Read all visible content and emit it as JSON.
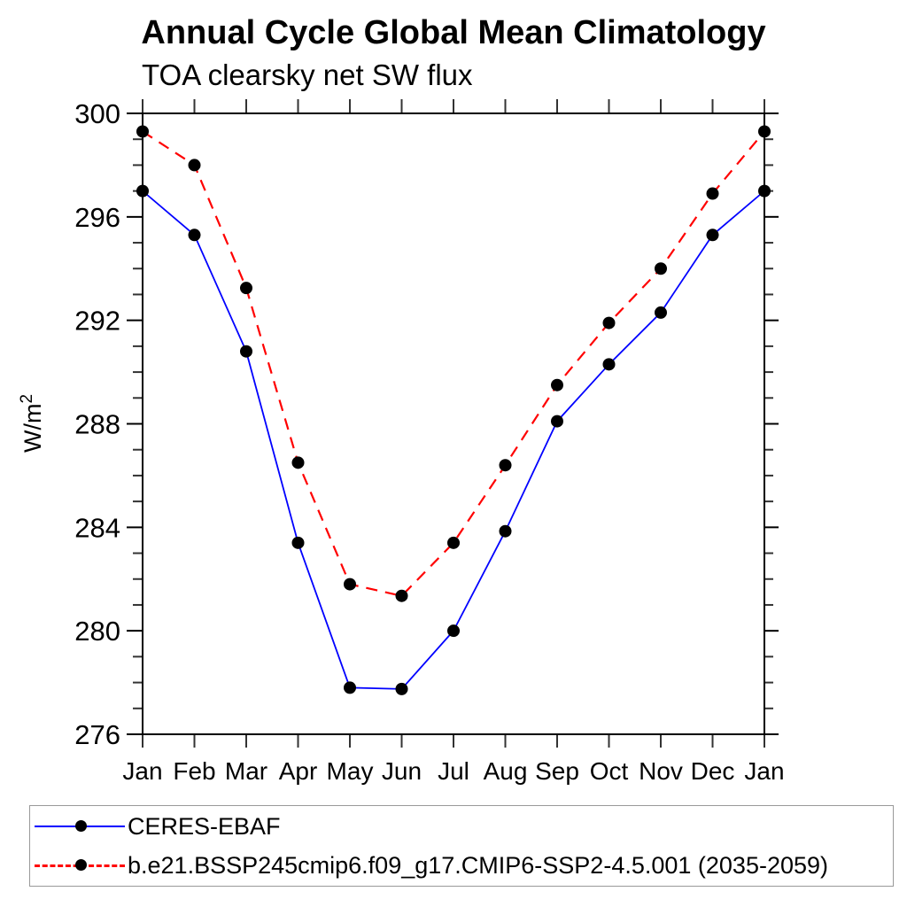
{
  "title": "Annual Cycle Global Mean Climatology",
  "subtitle": "TOA clearsky net SW flux",
  "y_axis": {
    "label": "W/m",
    "label_sup": "2"
  },
  "legend": {
    "entries": [
      {
        "label": "CERES-EBAF",
        "color": "#0000ff",
        "style": "solid"
      },
      {
        "label": "b.e21.BSSP245cmip6.f09_g17.CMIP6-SSP2-4.5.001 (2035-2059)",
        "color": "#ff0000",
        "style": "dashed"
      }
    ]
  },
  "chart_data": {
    "type": "line",
    "title": "Annual Cycle Global Mean Climatology",
    "subtitle": "TOA clearsky net SW flux",
    "xlabel": "",
    "ylabel": "W/m^2",
    "categories": [
      "Jan",
      "Feb",
      "Mar",
      "Apr",
      "May",
      "Jun",
      "Jul",
      "Aug",
      "Sep",
      "Oct",
      "Nov",
      "Dec",
      "Jan"
    ],
    "series": [
      {
        "name": "CERES-EBAF",
        "color": "#0000ff",
        "line": "solid",
        "marker": "filled-circle",
        "marker_color": "#000000",
        "values": [
          297.0,
          295.3,
          290.8,
          283.4,
          277.8,
          277.75,
          280.0,
          283.85,
          288.1,
          290.3,
          292.3,
          295.3,
          297.0
        ]
      },
      {
        "name": "b.e21.BSSP245cmip6.f09_g17.CMIP6-SSP2-4.5.001 (2035-2059)",
        "color": "#ff0000",
        "line": "dashed",
        "marker": "filled-circle",
        "marker_color": "#000000",
        "values": [
          299.3,
          298.0,
          293.25,
          286.5,
          281.8,
          281.35,
          283.4,
          286.4,
          289.5,
          291.9,
          294.0,
          296.9,
          299.3
        ]
      }
    ],
    "ylim": [
      276,
      300
    ],
    "yticks_major": [
      276,
      280,
      284,
      288,
      292,
      296,
      300
    ],
    "ytick_minor_step": 1,
    "grid": false,
    "frame": "box-with-outward-ticks",
    "legend_position": "bottom-left-box",
    "axis_color": "#000000",
    "tick_color": "#333333"
  }
}
